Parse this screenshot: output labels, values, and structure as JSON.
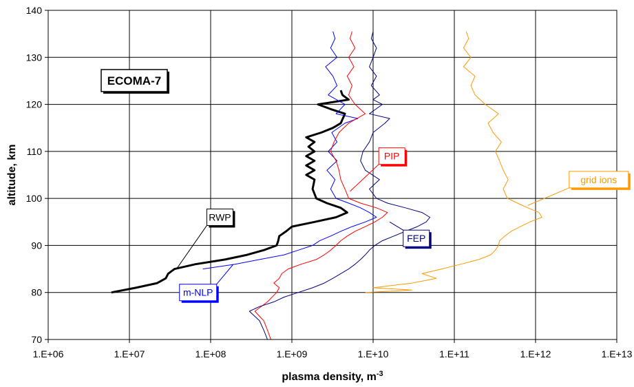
{
  "chart_data": {
    "type": "line",
    "title": "ECOMA-7",
    "xlabel": "plasma density, m",
    "xlabel_sup": "-3",
    "ylabel": "altitude, km",
    "x_scale": "log",
    "xlim": [
      1000000,
      10000000000000
    ],
    "ylim": [
      70,
      140
    ],
    "grid": true,
    "x_ticks": [
      {
        "value": 1000000,
        "label": "1.E+06"
      },
      {
        "value": 10000000,
        "label": "1.E+07"
      },
      {
        "value": 100000000,
        "label": "1.E+08"
      },
      {
        "value": 1000000000,
        "label": "1.E+09"
      },
      {
        "value": 10000000000,
        "label": "1.E+10"
      },
      {
        "value": 100000000000,
        "label": "1.E+11"
      },
      {
        "value": 1000000000000,
        "label": "1.E+12"
      },
      {
        "value": 10000000000000,
        "label": "1.E+13"
      }
    ],
    "y_ticks": [
      {
        "value": 70,
        "label": "70"
      },
      {
        "value": 80,
        "label": "80"
      },
      {
        "value": 90,
        "label": "90"
      },
      {
        "value": 100,
        "label": "100"
      },
      {
        "value": 110,
        "label": "110"
      },
      {
        "value": 120,
        "label": "120"
      },
      {
        "value": 130,
        "label": "130"
      },
      {
        "value": 140,
        "label": "140"
      }
    ],
    "series": [
      {
        "name": "RWP",
        "color": "#000000",
        "width": "thick",
        "points": [
          [
            6000000.0,
            80
          ],
          [
            12000000.0,
            81
          ],
          [
            22000000.0,
            82
          ],
          [
            28000000.0,
            83
          ],
          [
            30000000.0,
            84
          ],
          [
            36000000.0,
            85
          ],
          [
            65000000.0,
            86
          ],
          [
            150000000.0,
            87
          ],
          [
            280000000.0,
            88
          ],
          [
            450000000.0,
            89
          ],
          [
            650000000.0,
            90
          ],
          [
            680000000.0,
            91
          ],
          [
            700000000.0,
            92
          ],
          [
            850000000.0,
            93
          ],
          [
            1000000000.0,
            94
          ],
          [
            1900000000.0,
            95
          ],
          [
            3500000000.0,
            96
          ],
          [
            4800000000.0,
            97
          ],
          [
            4000000000.0,
            98
          ],
          [
            2700000000.0,
            99
          ],
          [
            2000000000.0,
            100
          ],
          [
            1800000000.0,
            102
          ],
          [
            1900000000.0,
            104
          ],
          [
            1500000000.0,
            105
          ],
          [
            1900000000.0,
            106
          ],
          [
            1500000000.0,
            107
          ],
          [
            1900000000.0,
            108
          ],
          [
            1500000000.0,
            109
          ],
          [
            1900000000.0,
            110
          ],
          [
            1600000000.0,
            111
          ],
          [
            1900000000.0,
            112
          ],
          [
            1500000000.0,
            113
          ],
          [
            2300000000.0,
            114
          ],
          [
            3200000000.0,
            115
          ],
          [
            4000000000.0,
            116
          ],
          [
            4500000000.0,
            118
          ],
          [
            3000000000.0,
            119
          ],
          [
            2100000000.0,
            120
          ],
          [
            5000000000.0,
            121
          ],
          [
            4200000000.0,
            122
          ],
          [
            4000000000.0,
            123
          ]
        ]
      },
      {
        "name": "m-NLP",
        "color": "#0000ff",
        "width": "thin",
        "points": [
          [
            80000000.0,
            85
          ],
          [
            200000000.0,
            86
          ],
          [
            400000000.0,
            87
          ],
          [
            800000000.0,
            88
          ],
          [
            1200000000.0,
            89
          ],
          [
            1800000000.0,
            90
          ],
          [
            2200000000.0,
            91
          ],
          [
            3000000000.0,
            92
          ],
          [
            4000000000.0,
            93
          ],
          [
            5500000000.0,
            94
          ],
          [
            8000000000.0,
            95
          ],
          [
            11000000000.0,
            96
          ],
          [
            9000000000.0,
            97
          ],
          [
            7000000000.0,
            98
          ],
          [
            5000000000.0,
            99
          ],
          [
            3500000000.0,
            100
          ],
          [
            3000000000.0,
            102
          ],
          [
            3400000000.0,
            104
          ],
          [
            2700000000.0,
            106
          ],
          [
            3600000000.0,
            108
          ],
          [
            2800000000.0,
            110
          ],
          [
            3600000000.0,
            112
          ],
          [
            3100000000.0,
            114
          ],
          [
            4500000000.0,
            116
          ],
          [
            6500000000.0,
            117
          ],
          [
            3500000000.0,
            118
          ],
          [
            4500000000.0,
            120
          ],
          [
            2800000000.0,
            122
          ],
          [
            3600000000.0,
            124
          ],
          [
            3200000000.0,
            126
          ],
          [
            2600000000.0,
            128
          ],
          [
            3600000000.0,
            130
          ],
          [
            3000000000.0,
            132
          ],
          [
            3400000000.0,
            134
          ],
          [
            3200000000.0,
            135.5
          ]
        ]
      },
      {
        "name": "PIP",
        "color": "#ff0000",
        "width": "thin",
        "points": [
          [
            550000000.0,
            70
          ],
          [
            500000000.0,
            72
          ],
          [
            450000000.0,
            74
          ],
          [
            350000000.0,
            76
          ],
          [
            500000000.0,
            78
          ],
          [
            650000000.0,
            80
          ],
          [
            700000000.0,
            81
          ],
          [
            600000000.0,
            82
          ],
          [
            700000000.0,
            83
          ],
          [
            750000000.0,
            84
          ],
          [
            900000000.0,
            85
          ],
          [
            1300000000.0,
            86
          ],
          [
            2000000000.0,
            87
          ],
          [
            2500000000.0,
            88
          ],
          [
            3000000000.0,
            89
          ],
          [
            3500000000.0,
            90
          ],
          [
            4000000000.0,
            91
          ],
          [
            4800000000.0,
            92
          ],
          [
            6000000000.0,
            93
          ],
          [
            8000000000.0,
            94
          ],
          [
            10500000000.0,
            95
          ],
          [
            13000000000.0,
            96
          ],
          [
            15000000000.0,
            97
          ],
          [
            11000000000.0,
            98
          ],
          [
            7000000000.0,
            99
          ],
          [
            5000000000.0,
            100
          ],
          [
            4500000000.0,
            102
          ],
          [
            4000000000.0,
            104
          ],
          [
            3800000000.0,
            106
          ],
          [
            3500000000.0,
            108
          ],
          [
            3000000000.0,
            110
          ],
          [
            3300000000.0,
            112
          ],
          [
            3800000000.0,
            114
          ],
          [
            5000000000.0,
            116
          ],
          [
            8000000000.0,
            118
          ],
          [
            6000000000.0,
            120
          ],
          [
            5000000000.0,
            122
          ],
          [
            5500000000.0,
            124
          ],
          [
            4800000000.0,
            126
          ],
          [
            5800000000.0,
            128
          ],
          [
            5000000000.0,
            130
          ],
          [
            6000000000.0,
            132
          ],
          [
            5200000000.0,
            134
          ],
          [
            5500000000.0,
            135.5
          ]
        ]
      },
      {
        "name": "FEP",
        "color": "#000080",
        "width": "thin",
        "points": [
          [
            500000000.0,
            70
          ],
          [
            450000000.0,
            72
          ],
          [
            400000000.0,
            74
          ],
          [
            300000000.0,
            76
          ],
          [
            400000000.0,
            77
          ],
          [
            600000000.0,
            78
          ],
          [
            800000000.0,
            79
          ],
          [
            1200000000.0,
            80
          ],
          [
            1800000000.0,
            81
          ],
          [
            2500000000.0,
            82
          ],
          [
            3200000000.0,
            83
          ],
          [
            4000000000.0,
            84
          ],
          [
            5000000000.0,
            85
          ],
          [
            6000000000.0,
            86
          ],
          [
            7000000000.0,
            87
          ],
          [
            8000000000.0,
            88
          ],
          [
            9000000000.0,
            89
          ],
          [
            10500000000.0,
            90
          ],
          [
            13000000000.0,
            91
          ],
          [
            18000000000.0,
            92
          ],
          [
            25000000000.0,
            93
          ],
          [
            35000000000.0,
            94
          ],
          [
            45000000000.0,
            95
          ],
          [
            50000000000.0,
            96
          ],
          [
            40000000000.0,
            97
          ],
          [
            25000000000.0,
            98
          ],
          [
            15000000000.0,
            99
          ],
          [
            11000000000.0,
            100
          ],
          [
            9000000000.0,
            102
          ],
          [
            12000000000.0,
            104
          ],
          [
            8000000000.0,
            106
          ],
          [
            7000000000.0,
            108
          ],
          [
            7500000000.0,
            110
          ],
          [
            9000000000.0,
            112
          ],
          [
            10000000000.0,
            114
          ],
          [
            14000000000.0,
            116
          ],
          [
            16000000000.0,
            117
          ],
          [
            9000000000.0,
            118
          ],
          [
            13000000000.0,
            120
          ],
          [
            10000000000.0,
            121
          ],
          [
            12000000000.0,
            122
          ],
          [
            9500000000.0,
            124
          ],
          [
            11000000000.0,
            126
          ],
          [
            9000000000.0,
            128
          ],
          [
            10000000000.0,
            130
          ],
          [
            11000000000.0,
            132
          ],
          [
            9500000000.0,
            134
          ],
          [
            10000000000.0,
            135.5
          ]
        ]
      },
      {
        "name": "grid ions",
        "color": "#ff9900",
        "width": "thin",
        "points": [
          [
            8000000000.0,
            80
          ],
          [
            30000000000.0,
            80.5
          ],
          [
            10000000000.0,
            81
          ],
          [
            30000000000.0,
            82
          ],
          [
            60000000000.0,
            83
          ],
          [
            40000000000.0,
            84
          ],
          [
            70000000000.0,
            85
          ],
          [
            120000000000.0,
            86
          ],
          [
            200000000000.0,
            87
          ],
          [
            280000000000.0,
            88
          ],
          [
            320000000000.0,
            89
          ],
          [
            350000000000.0,
            90
          ],
          [
            360000000000.0,
            91
          ],
          [
            420000000000.0,
            92
          ],
          [
            500000000000.0,
            93
          ],
          [
            650000000000.0,
            94
          ],
          [
            850000000000.0,
            95
          ],
          [
            1200000000000.0,
            96
          ],
          [
            1100000000000.0,
            97
          ],
          [
            800000000000.0,
            98
          ],
          [
            600000000000.0,
            99
          ],
          [
            450000000000.0,
            100
          ],
          [
            400000000000.0,
            102
          ],
          [
            460000000000.0,
            104
          ],
          [
            400000000000.0,
            106
          ],
          [
            360000000000.0,
            108
          ],
          [
            320000000000.0,
            110
          ],
          [
            380000000000.0,
            112
          ],
          [
            300000000000.0,
            114
          ],
          [
            260000000000.0,
            116
          ],
          [
            350000000000.0,
            118
          ],
          [
            240000000000.0,
            120
          ],
          [
            180000000000.0,
            122
          ],
          [
            160000000000.0,
            124
          ],
          [
            180000000000.0,
            126
          ],
          [
            130000000000.0,
            128
          ],
          [
            160000000000.0,
            130
          ],
          [
            130000000000.0,
            132
          ],
          [
            150000000000.0,
            134
          ],
          [
            140000000000.0,
            135.5
          ]
        ]
      }
    ],
    "annotations": [
      {
        "text": "ECOMA-7",
        "kind": "title-box"
      },
      {
        "text": "RWP",
        "series": "RWP",
        "color": "#000000",
        "label_at": [
          130000000.0,
          96
        ],
        "arrow_to": [
          38000000.0,
          85
        ]
      },
      {
        "text": "m-NLP",
        "series": "m-NLP",
        "color": "#0000ff",
        "label_at": [
          70000000.0,
          80
        ],
        "arrow_to": [
          190000000.0,
          86
        ]
      },
      {
        "text": "PIP",
        "series": "PIP",
        "color": "#ff0000",
        "label_at": [
          17000000000.0,
          109
        ],
        "arrow_to": [
          5200000000.0,
          101.5
        ]
      },
      {
        "text": "FEP",
        "series": "FEP",
        "color": "#000080",
        "label_at": [
          34000000000.0,
          91.5
        ],
        "arrow_to": [
          16000000000.0,
          95
        ]
      },
      {
        "text": "grid ions",
        "series": "grid ions",
        "color": "#ff9900",
        "label_at": [
          6000000000000.0,
          104
        ],
        "arrow_to": [
          800000000000.0,
          98.5
        ]
      }
    ]
  }
}
